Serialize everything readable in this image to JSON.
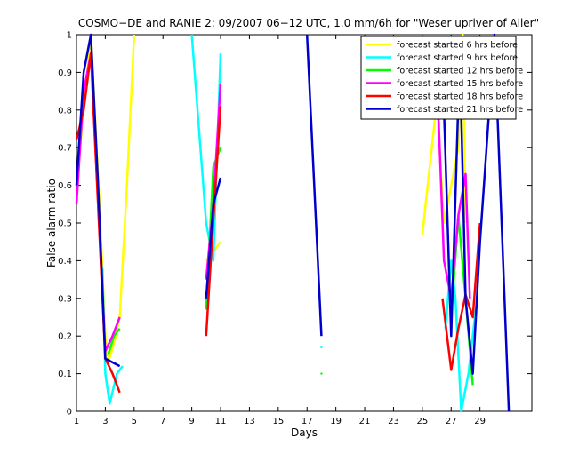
{
  "chart_data": {
    "type": "line",
    "title": "COSMO−DE and RANIE 2: 09/2007 06−12 UTC, 1.0 mm/6h for \"Weser upriver of Aller\"",
    "xlabel": "Days",
    "ylabel": "False alarm ratio",
    "xlim": [
      1,
      32.6
    ],
    "ylim": [
      0,
      1
    ],
    "xticks": [
      1,
      3,
      5,
      7,
      9,
      11,
      13,
      15,
      17,
      19,
      21,
      23,
      25,
      27,
      29
    ],
    "yticks": [
      0,
      0.1,
      0.2,
      0.3,
      0.4,
      0.5,
      0.6,
      0.7,
      0.8,
      0.9,
      1
    ],
    "legend_position": "top-right",
    "series": [
      {
        "name": "forecast started 6 hrs before",
        "color": "#ffff00",
        "points": [
          [
            1.0,
            0.6
          ],
          [
            1.5,
            0.8
          ],
          [
            2.0,
            1.0
          ],
          [
            2.6,
            0.55
          ],
          [
            3.0,
            0.2
          ],
          [
            3.2,
            0.13
          ],
          [
            3.6,
            0.18
          ],
          [
            4.0,
            0.25
          ],
          [
            4.5,
            0.6
          ],
          [
            5.0,
            1.0
          ],
          [
            null,
            null
          ],
          [
            11.0,
            0.45
          ],
          [
            10.0,
            0.4
          ],
          [
            null,
            null
          ],
          [
            25.0,
            0.47
          ],
          [
            26.0,
            0.82
          ],
          [
            26.5,
            0.5
          ],
          [
            27.0,
            0.6
          ],
          [
            27.5,
            0.7
          ],
          [
            27.8,
            1.0
          ],
          [
            28.0,
            0.5
          ]
        ]
      },
      {
        "name": "forecast started 9 hrs before",
        "color": "#00ffff",
        "points": [
          [
            2.8,
            0.38
          ],
          [
            3.0,
            0.1
          ],
          [
            3.3,
            0.02
          ],
          [
            3.8,
            0.1
          ],
          [
            4.2,
            0.12
          ],
          [
            null,
            null
          ],
          [
            9.0,
            1.0
          ],
          [
            10.0,
            0.5
          ],
          [
            10.5,
            0.4
          ],
          [
            11.0,
            0.95
          ],
          [
            null,
            null
          ],
          [
            18.0,
            0.17
          ],
          [
            null,
            null
          ],
          [
            26.6,
            0.22
          ],
          [
            27.0,
            0.4
          ],
          [
            27.3,
            0.3
          ],
          [
            27.7,
            0.0
          ],
          [
            28.2,
            0.1
          ],
          [
            28.8,
            0.3
          ]
        ]
      },
      {
        "name": "forecast started 12 hrs before",
        "color": "#00ff00",
        "points": [
          [
            3.2,
            0.15
          ],
          [
            3.6,
            0.2
          ],
          [
            4.0,
            0.22
          ],
          [
            null,
            null
          ],
          [
            10.0,
            0.27
          ],
          [
            10.5,
            0.65
          ],
          [
            11.0,
            0.7
          ],
          [
            null,
            null
          ],
          [
            18.0,
            0.1
          ],
          [
            null,
            null
          ],
          [
            27.0,
            0.25
          ],
          [
            27.5,
            0.52
          ],
          [
            28.0,
            0.3
          ],
          [
            28.5,
            0.07
          ]
        ]
      },
      {
        "name": "forecast started 15 hrs before",
        "color": "#ff00ff",
        "points": [
          [
            1.0,
            0.55
          ],
          [
            1.5,
            0.85
          ],
          [
            2.0,
            0.95
          ],
          [
            3.0,
            0.16
          ],
          [
            3.5,
            0.2
          ],
          [
            4.0,
            0.25
          ],
          [
            null,
            null
          ],
          [
            10.0,
            0.35
          ],
          [
            10.5,
            0.55
          ],
          [
            11.0,
            0.87
          ],
          [
            null,
            null
          ],
          [
            25.0,
            0.81
          ],
          [
            26.0,
            0.9
          ],
          [
            26.5,
            0.4
          ],
          [
            27.0,
            0.3
          ],
          [
            27.5,
            0.52
          ],
          [
            28.0,
            0.63
          ],
          [
            28.3,
            0.3
          ]
        ]
      },
      {
        "name": "forecast started 18 hrs before",
        "color": "#ff0000",
        "points": [
          [
            1.0,
            0.72
          ],
          [
            1.5,
            0.8
          ],
          [
            2.0,
            0.95
          ],
          [
            3.0,
            0.14
          ],
          [
            3.5,
            0.1
          ],
          [
            4.0,
            0.05
          ],
          [
            null,
            null
          ],
          [
            10.0,
            0.2
          ],
          [
            10.4,
            0.45
          ],
          [
            11.0,
            0.81
          ],
          [
            null,
            null
          ],
          [
            26.4,
            0.3
          ],
          [
            27.0,
            0.11
          ],
          [
            27.5,
            0.22
          ],
          [
            28.0,
            0.31
          ],
          [
            28.5,
            0.25
          ],
          [
            29.0,
            0.5
          ]
        ]
      },
      {
        "name": "forecast started 21 hrs before",
        "color": "#0000cc",
        "points": [
          [
            1.0,
            0.6
          ],
          [
            1.5,
            0.9
          ],
          [
            2.0,
            1.0
          ],
          [
            2.5,
            0.6
          ],
          [
            3.0,
            0.14
          ],
          [
            3.5,
            0.13
          ],
          [
            4.0,
            0.12
          ],
          [
            null,
            null
          ],
          [
            10.0,
            0.3
          ],
          [
            10.5,
            0.55
          ],
          [
            11.0,
            0.62
          ],
          [
            null,
            null
          ],
          [
            17.0,
            1.0
          ],
          [
            18.0,
            0.2
          ],
          [
            null,
            null
          ],
          [
            26.0,
            0.94
          ],
          [
            26.5,
            0.8
          ],
          [
            27.0,
            0.2
          ],
          [
            27.6,
            0.95
          ],
          [
            28.0,
            0.3
          ],
          [
            28.5,
            0.1
          ],
          [
            29.0,
            0.45
          ],
          [
            30.0,
            1.0
          ],
          [
            31.0,
            0.0
          ]
        ]
      }
    ]
  }
}
